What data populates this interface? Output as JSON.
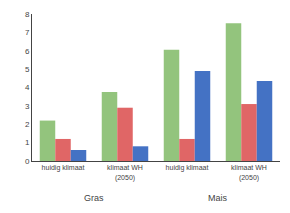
{
  "chart_data": {
    "type": "bar",
    "categories": [
      "huidig klimaat",
      "klimaat WH\n(2050)",
      "huidig klimaat",
      "klimaat WH\n(2050)"
    ],
    "series": [
      {
        "color": "#93c47d",
        "values": [
          2.2,
          3.75,
          6.05,
          7.5
        ]
      },
      {
        "color": "#e06666",
        "values": [
          1.2,
          2.9,
          1.2,
          3.1
        ]
      },
      {
        "color": "#4472c4",
        "values": [
          0.6,
          0.8,
          4.9,
          4.35
        ]
      }
    ],
    "annotations": [
      "Gras",
      "Mais"
    ],
    "ylim": [
      0,
      8
    ],
    "yticks": [
      0,
      1,
      2,
      3,
      4,
      5,
      6,
      7,
      8
    ],
    "grid": false
  }
}
